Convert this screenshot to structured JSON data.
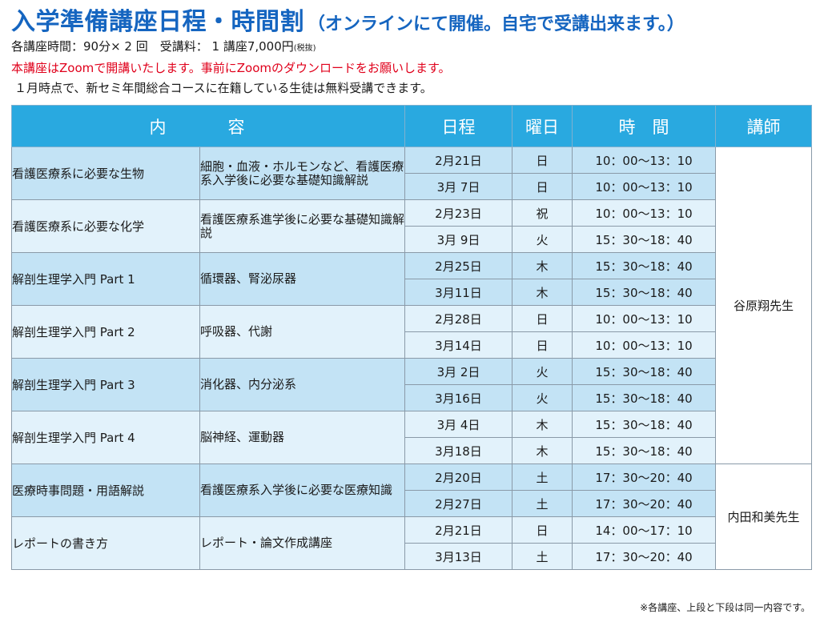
{
  "header": {
    "title": "入学準備講座日程・時間割",
    "subtitle": "（オンラインにて開催。自宅で受講出来ます。）",
    "info_line": "各講座時間：90分× 2 回　受講料： 1 講座7,000円",
    "info_tax": "(税抜)",
    "zoom_notice": "本講座はZoomで開講いたします。事前にZoomのダウンロードをお願いします。",
    "free_notice": "１月時点で、新セミ年間総合コースに在籍している生徒は無料受講できます。"
  },
  "table": {
    "headers": {
      "content": "内　容",
      "date": "日程",
      "day": "曜日",
      "time": "時　間",
      "teacher": "講師"
    },
    "teachers": [
      "谷原翔先生",
      "内田和美先生"
    ],
    "courses": [
      {
        "name": "看護医療系に必要な生物",
        "desc": "細胞・血液・ホルモンなど、看護医療系入学後に必要な基礎知識解説",
        "sessions": [
          {
            "date": "2月21日",
            "day": "日",
            "time": "10：00〜13：10"
          },
          {
            "date": "3月 7日",
            "day": "日",
            "time": "10：00〜13：10"
          }
        ]
      },
      {
        "name": "看護医療系に必要な化学",
        "desc": "看護医療系進学後に必要な基礎知識解説",
        "sessions": [
          {
            "date": "2月23日",
            "day": "祝",
            "time": "10：00〜13：10"
          },
          {
            "date": "3月 9日",
            "day": "火",
            "time": "15：30〜18：40"
          }
        ]
      },
      {
        "name": "解剖生理学入門 Part 1",
        "desc": "循環器、腎泌尿器",
        "sessions": [
          {
            "date": "2月25日",
            "day": "木",
            "time": "15：30〜18：40"
          },
          {
            "date": "3月11日",
            "day": "木",
            "time": "15：30〜18：40"
          }
        ]
      },
      {
        "name": "解剖生理学入門 Part 2",
        "desc": "呼吸器、代謝",
        "sessions": [
          {
            "date": "2月28日",
            "day": "日",
            "time": "10：00〜13：10"
          },
          {
            "date": "3月14日",
            "day": "日",
            "time": "10：00〜13：10"
          }
        ]
      },
      {
        "name": "解剖生理学入門 Part 3",
        "desc": "消化器、内分泌系",
        "sessions": [
          {
            "date": "3月 2日",
            "day": "火",
            "time": "15：30〜18：40"
          },
          {
            "date": "3月16日",
            "day": "火",
            "time": "15：30〜18：40"
          }
        ]
      },
      {
        "name": "解剖生理学入門 Part 4",
        "desc": "脳神経、運動器",
        "sessions": [
          {
            "date": "3月 4日",
            "day": "木",
            "time": "15：30〜18：40"
          },
          {
            "date": "3月18日",
            "day": "木",
            "time": "15：30〜18：40"
          }
        ]
      },
      {
        "name": "医療時事問題・用語解説",
        "desc": "看護医療系入学後に必要な医療知識",
        "sessions": [
          {
            "date": "2月20日",
            "day": "土",
            "time": "17：30〜20：40"
          },
          {
            "date": "2月27日",
            "day": "土",
            "time": "17：30〜20：40"
          }
        ]
      },
      {
        "name": "レポートの書き方",
        "desc": "レポート・論文作成講座",
        "sessions": [
          {
            "date": "2月21日",
            "day": "日",
            "time": "14：00〜17：10"
          },
          {
            "date": "3月13日",
            "day": "土",
            "time": "17：30〜20：40"
          }
        ]
      }
    ]
  },
  "footnote": "※各講座、上段と下段は同一内容です。",
  "colors": {
    "title": "#1565c0",
    "header_bg": "#29a9e0",
    "row_dark": "#c3e3f5",
    "row_light": "#e2f2fb",
    "notice_red": "#e0001b"
  }
}
